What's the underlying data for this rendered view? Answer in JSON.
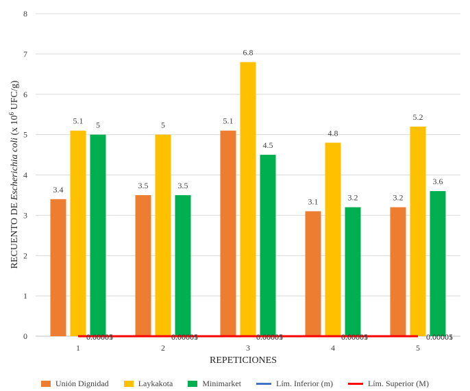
{
  "chart_data": {
    "type": "bar",
    "categories": [
      "1",
      "2",
      "3",
      "4",
      "5"
    ],
    "series": [
      {
        "name": "Unión Dignidad",
        "kind": "bar",
        "color": "#ED7D31",
        "values": [
          3.4,
          3.5,
          5.1,
          3.1,
          3.2
        ],
        "labels": [
          "3.4",
          "3.5",
          "5.1",
          "3.1",
          "3.2"
        ]
      },
      {
        "name": "Laykakota",
        "kind": "bar",
        "color": "#FFC000",
        "values": [
          5.1,
          5,
          6.8,
          4.8,
          5.2
        ],
        "labels": [
          "5.1",
          "5",
          "6.8",
          "4.8",
          "5.2"
        ]
      },
      {
        "name": "Minimarket",
        "kind": "bar",
        "color": "#00B050",
        "values": [
          5,
          3.5,
          4.5,
          3.2,
          3.6
        ],
        "labels": [
          "5",
          "3.5",
          "4.5",
          "3.2",
          "3.6"
        ]
      },
      {
        "name": "Lím. Inferior (m)",
        "kind": "line",
        "color": "#4472C4",
        "values": [
          1e-05,
          1e-05,
          1e-05,
          1e-05,
          1e-05
        ],
        "labels": [
          "0.00001",
          "0.00001",
          "0.00001",
          "0.00001",
          "0.00001"
        ]
      },
      {
        "name": "Lím. Superior (M)",
        "kind": "line",
        "color": "#FF0000",
        "values": [
          5e-05,
          5e-05,
          5e-05,
          5e-05,
          5e-05
        ],
        "labels": [
          "0.00005",
          "0.00005",
          "0.00005",
          "0.00005",
          "0.00005"
        ]
      }
    ],
    "ylim": [
      0,
      8
    ],
    "yticks": [
      "0",
      "1",
      "2",
      "3",
      "4",
      "5",
      "6",
      "7",
      "8"
    ],
    "ylabel_prefix": "RECUENTO DE ",
    "ylabel_italic": "Escherichia coli",
    "ylabel_suffix": " (x 10",
    "ylabel_sup": "6",
    "ylabel_end": " UFC/g)",
    "xlabel": "REPETICIONES",
    "grid": true,
    "legend_position": "bottom"
  }
}
